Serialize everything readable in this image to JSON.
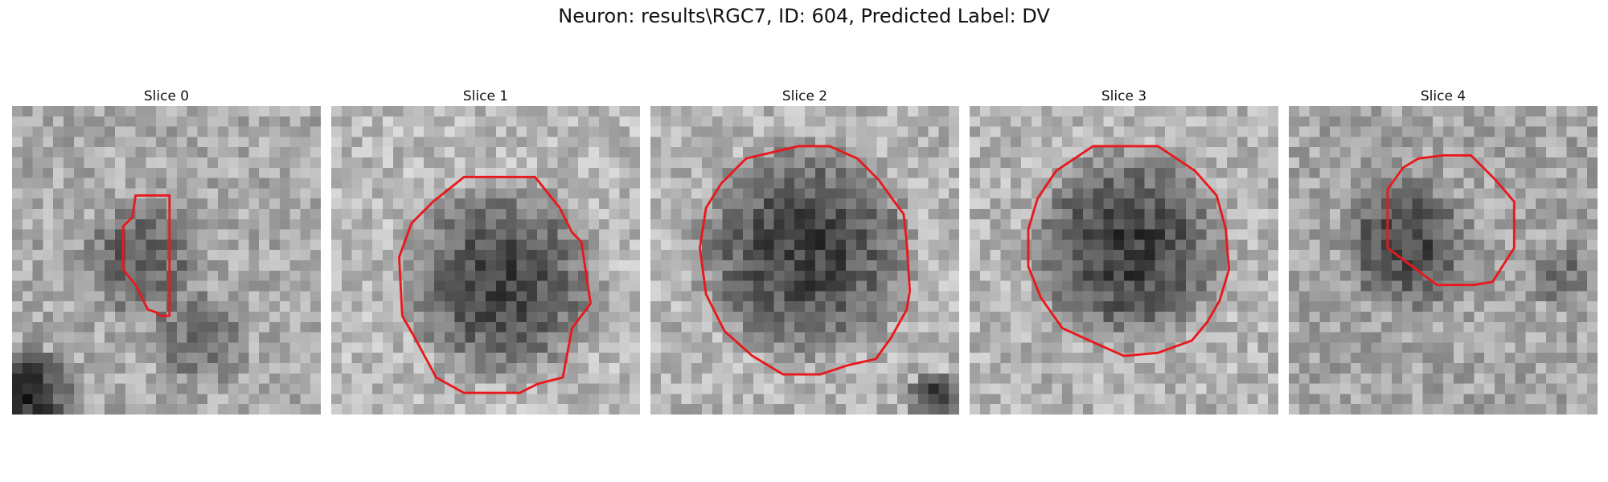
{
  "figure": {
    "title": "Neuron: results\\RGC7, ID: 604, Predicted Label: DV",
    "contour_color": "#e8191c",
    "colormap": "gray"
  },
  "slices": [
    {
      "title": "Slice 0",
      "contour": [
        [
          0.4,
          0.29
        ],
        [
          0.44,
          0.29
        ],
        [
          0.51,
          0.29
        ],
        [
          0.51,
          0.68
        ],
        [
          0.48,
          0.68
        ],
        [
          0.47,
          0.67
        ],
        [
          0.44,
          0.66
        ],
        [
          0.4,
          0.58
        ],
        [
          0.36,
          0.53
        ],
        [
          0.36,
          0.39
        ],
        [
          0.39,
          0.36
        ]
      ]
    },
    {
      "title": "Slice 1",
      "contour": [
        [
          0.43,
          0.23
        ],
        [
          0.66,
          0.23
        ],
        [
          0.74,
          0.33
        ],
        [
          0.78,
          0.41
        ],
        [
          0.81,
          0.44
        ],
        [
          0.84,
          0.64
        ],
        [
          0.78,
          0.72
        ],
        [
          0.75,
          0.88
        ],
        [
          0.67,
          0.9
        ],
        [
          0.61,
          0.93
        ],
        [
          0.43,
          0.93
        ],
        [
          0.34,
          0.88
        ],
        [
          0.27,
          0.75
        ],
        [
          0.23,
          0.68
        ],
        [
          0.22,
          0.49
        ],
        [
          0.26,
          0.38
        ],
        [
          0.33,
          0.31
        ]
      ]
    },
    {
      "title": "Slice 2",
      "contour": [
        [
          0.31,
          0.17
        ],
        [
          0.48,
          0.13
        ],
        [
          0.58,
          0.13
        ],
        [
          0.67,
          0.17
        ],
        [
          0.74,
          0.24
        ],
        [
          0.79,
          0.31
        ],
        [
          0.82,
          0.35
        ],
        [
          0.83,
          0.44
        ],
        [
          0.84,
          0.6
        ],
        [
          0.83,
          0.66
        ],
        [
          0.78,
          0.75
        ],
        [
          0.73,
          0.82
        ],
        [
          0.64,
          0.84
        ],
        [
          0.55,
          0.87
        ],
        [
          0.43,
          0.87
        ],
        [
          0.33,
          0.81
        ],
        [
          0.24,
          0.73
        ],
        [
          0.18,
          0.61
        ],
        [
          0.16,
          0.46
        ],
        [
          0.18,
          0.33
        ],
        [
          0.23,
          0.25
        ]
      ]
    },
    {
      "title": "Slice 3",
      "contour": [
        [
          0.4,
          0.13
        ],
        [
          0.61,
          0.13
        ],
        [
          0.73,
          0.21
        ],
        [
          0.8,
          0.29
        ],
        [
          0.83,
          0.4
        ],
        [
          0.84,
          0.53
        ],
        [
          0.81,
          0.63
        ],
        [
          0.77,
          0.7
        ],
        [
          0.72,
          0.76
        ],
        [
          0.61,
          0.8
        ],
        [
          0.5,
          0.81
        ],
        [
          0.41,
          0.77
        ],
        [
          0.3,
          0.72
        ],
        [
          0.23,
          0.62
        ],
        [
          0.19,
          0.52
        ],
        [
          0.19,
          0.4
        ],
        [
          0.22,
          0.3
        ],
        [
          0.28,
          0.21
        ]
      ]
    },
    {
      "title": "Slice 4",
      "contour": [
        [
          0.42,
          0.17
        ],
        [
          0.5,
          0.16
        ],
        [
          0.59,
          0.16
        ],
        [
          0.67,
          0.24
        ],
        [
          0.73,
          0.31
        ],
        [
          0.73,
          0.46
        ],
        [
          0.66,
          0.57
        ],
        [
          0.6,
          0.58
        ],
        [
          0.48,
          0.58
        ],
        [
          0.4,
          0.52
        ],
        [
          0.32,
          0.46
        ],
        [
          0.32,
          0.27
        ],
        [
          0.37,
          0.2
        ]
      ]
    }
  ]
}
